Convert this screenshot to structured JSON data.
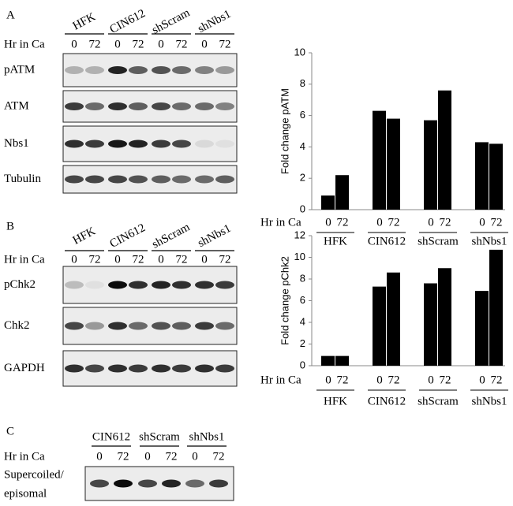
{
  "blots": [
    {
      "panel": "A",
      "time_label": "Hr in Ca",
      "groups": [
        "HFK",
        "CIN612",
        "shScram",
        "shNbs1"
      ],
      "timepoints": [
        "0",
        "72"
      ],
      "rows": [
        "pATM",
        "ATM",
        "Nbs1",
        "Tubulin"
      ]
    },
    {
      "panel": "B",
      "time_label": "Hr in Ca",
      "groups": [
        "HFK",
        "CIN612",
        "shScram",
        "shNbs1"
      ],
      "timepoints": [
        "0",
        "72"
      ],
      "rows": [
        "pChk2",
        "Chk2",
        "GAPDH"
      ]
    },
    {
      "panel": "C",
      "time_label": "Hr in Ca",
      "groups": [
        "CIN612",
        "shScram",
        "shNbs1"
      ],
      "timepoints": [
        "0",
        "72"
      ],
      "rows": [
        [
          "Supercoiled/",
          "episomal"
        ]
      ]
    }
  ],
  "chart_data": [
    {
      "type": "bar",
      "ylabel": "Fold change pATM",
      "xlabel": "Hr in Ca",
      "categories": [
        "HFK",
        "CIN612",
        "shScram",
        "shNbs1"
      ],
      "series": [
        {
          "name": "0",
          "color": "#000000",
          "values": [
            0.9,
            6.3,
            5.7,
            4.3
          ]
        },
        {
          "name": "72",
          "color": "#000000",
          "values": [
            2.2,
            5.8,
            7.6,
            4.2
          ]
        }
      ],
      "ylim": [
        0,
        10
      ],
      "yticks": [
        0,
        2,
        4,
        6,
        8,
        10
      ]
    },
    {
      "type": "bar",
      "ylabel": "Fold change pChk2",
      "xlabel": "Hr in Ca",
      "categories": [
        "HFK",
        "CIN612",
        "shScram",
        "shNbs1"
      ],
      "series": [
        {
          "name": "0",
          "color": "#000000",
          "values": [
            0.9,
            7.3,
            7.6,
            6.9
          ]
        },
        {
          "name": "72",
          "color": "#000000",
          "values": [
            0.9,
            8.6,
            9.0,
            10.7
          ]
        }
      ],
      "ylim": [
        0,
        12
      ],
      "yticks": [
        0,
        2,
        4,
        6,
        8,
        10,
        12
      ]
    }
  ]
}
